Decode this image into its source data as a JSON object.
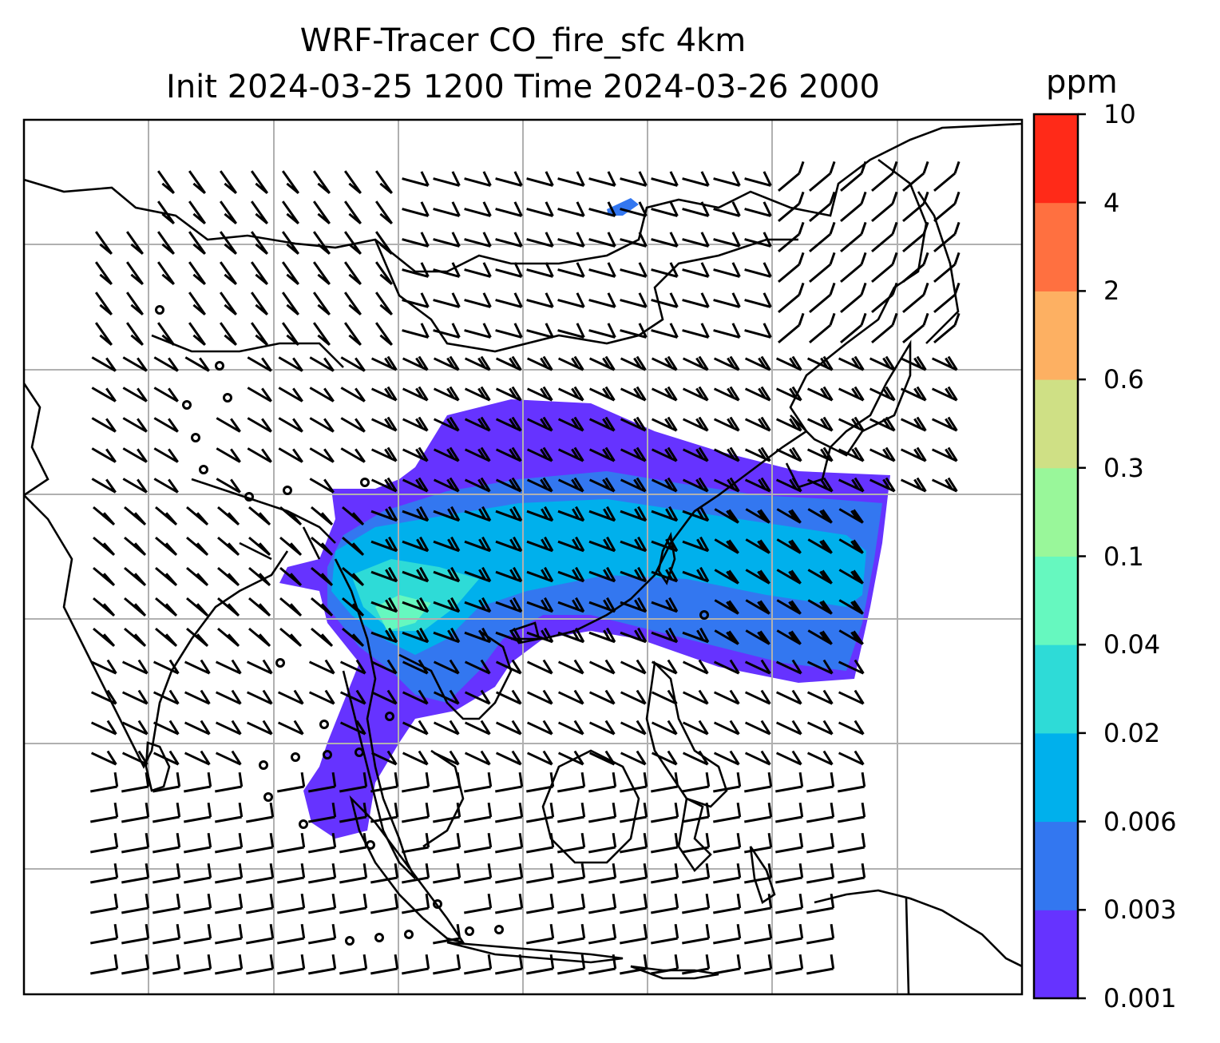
{
  "title": {
    "line1": "WRF-Tracer CO_fire_sfc 4km",
    "line2": "Init 2024-03-25 1200 Time 2024-03-26 2000"
  },
  "colorbar": {
    "unit": "ppm",
    "ticks": [
      "0.001",
      "0.003",
      "0.006",
      "0.02",
      "0.04",
      "0.1",
      "0.3",
      "0.6",
      "2",
      "4",
      "10"
    ],
    "colors": [
      "#6633ff",
      "#3377f0",
      "#00b0ec",
      "#2edbd7",
      "#66f8bf",
      "#99f79a",
      "#cfe085",
      "#fdb062",
      "#ff7040",
      "#ff2a18"
    ]
  },
  "map": {
    "gridlines": true,
    "coastline_color": "#000000",
    "grid_color": "#b0b0b0",
    "wind_barbs": true
  }
}
